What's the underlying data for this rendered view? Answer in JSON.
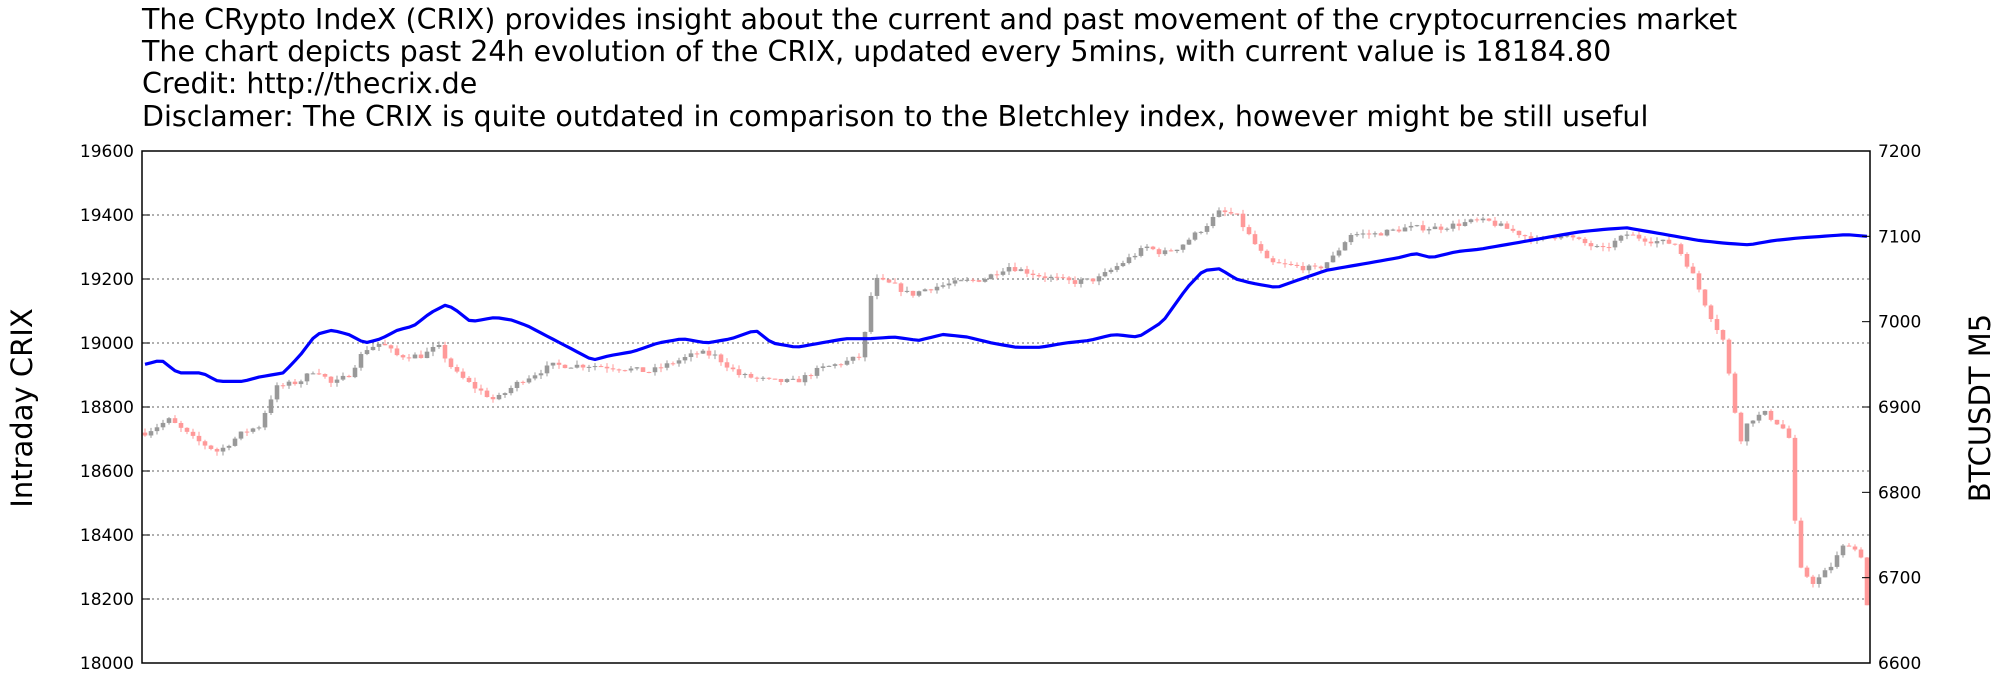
{
  "title_lines": [
    "The CRypto IndeX (CRIX) provides insight about the current and past movement of the cryptocurrencies market",
    "The chart depicts past 24h evolution of the CRIX, updated every 5mins, with current value is 18184.80",
    "Credit: http://thecrix.de",
    "Disclamer: The CRIX is quite outdated in comparison to the Bletchley index, however might be still useful"
  ],
  "chart_data": {
    "type": "candlestick+line",
    "ylabel_left": "Intraday CRIX",
    "ylabel_right": "BTCUSDT M5",
    "left_axis": {
      "range": [
        18000,
        19600
      ],
      "ticks": [
        18000,
        18200,
        18400,
        18600,
        18800,
        19000,
        19200,
        19400,
        19600
      ]
    },
    "right_axis": {
      "range": [
        6600,
        7200
      ],
      "ticks": [
        6600,
        6700,
        6800,
        6900,
        7000,
        7100,
        7200
      ]
    },
    "grid": "horizontal dotted",
    "candle_count": 288,
    "colors": {
      "up": "#999999",
      "down": "#ff9999",
      "line": "#0000ff",
      "grid": "#808080"
    },
    "crix_close_anchors": [
      [
        0,
        18720
      ],
      [
        6,
        18760
      ],
      [
        12,
        18700
      ],
      [
        18,
        18660
      ],
      [
        24,
        18720
      ],
      [
        28,
        18740
      ],
      [
        32,
        18860
      ],
      [
        38,
        18880
      ],
      [
        42,
        18920
      ],
      [
        46,
        18870
      ],
      [
        50,
        18900
      ],
      [
        54,
        18980
      ],
      [
        58,
        19000
      ],
      [
        62,
        18960
      ],
      [
        68,
        18960
      ],
      [
        72,
        18990
      ],
      [
        76,
        18910
      ],
      [
        80,
        18870
      ],
      [
        86,
        18820
      ],
      [
        92,
        18880
      ],
      [
        100,
        18930
      ],
      [
        110,
        18930
      ],
      [
        118,
        18920
      ],
      [
        124,
        18910
      ],
      [
        130,
        18940
      ],
      [
        136,
        18970
      ],
      [
        140,
        18960
      ],
      [
        146,
        18900
      ],
      [
        154,
        18880
      ],
      [
        160,
        18880
      ],
      [
        166,
        18920
      ],
      [
        172,
        18940
      ],
      [
        176,
        18960
      ],
      [
        179,
        19200
      ],
      [
        184,
        19180
      ],
      [
        188,
        19150
      ],
      [
        192,
        19170
      ],
      [
        200,
        19190
      ],
      [
        206,
        19200
      ],
      [
        212,
        19240
      ],
      [
        220,
        19210
      ],
      [
        228,
        19190
      ],
      [
        234,
        19200
      ],
      [
        240,
        19250
      ],
      [
        246,
        19300
      ],
      [
        250,
        19280
      ],
      [
        254,
        19300
      ],
      [
        260,
        19360
      ],
      [
        264,
        19410
      ],
      [
        268,
        19400
      ],
      [
        272,
        19320
      ],
      [
        276,
        19250
      ],
      [
        282,
        19240
      ],
      [
        288,
        19230
      ],
      [
        292,
        19270
      ],
      [
        296,
        19340
      ],
      [
        302,
        19340
      ],
      [
        310,
        19360
      ],
      [
        318,
        19360
      ],
      [
        326,
        19380
      ],
      [
        330,
        19380
      ],
      [
        336,
        19350
      ],
      [
        342,
        19320
      ],
      [
        348,
        19340
      ],
      [
        354,
        19310
      ],
      [
        358,
        19290
      ],
      [
        364,
        19340
      ],
      [
        370,
        19320
      ],
      [
        376,
        19310
      ],
      [
        380,
        19220
      ],
      [
        384,
        19100
      ],
      [
        388,
        19000
      ],
      [
        390,
        18820
      ],
      [
        392,
        18700
      ],
      [
        394,
        18760
      ],
      [
        398,
        18780
      ],
      [
        402,
        18740
      ],
      [
        404,
        18700
      ],
      [
        406,
        18300
      ],
      [
        410,
        18250
      ],
      [
        414,
        18300
      ],
      [
        418,
        18380
      ],
      [
        422,
        18330
      ],
      [
        423,
        18180
      ]
    ],
    "btc_line_anchors": [
      [
        0,
        6950
      ],
      [
        4,
        6955
      ],
      [
        8,
        6940
      ],
      [
        14,
        6940
      ],
      [
        18,
        6930
      ],
      [
        24,
        6930
      ],
      [
        28,
        6935
      ],
      [
        34,
        6940
      ],
      [
        38,
        6960
      ],
      [
        42,
        6985
      ],
      [
        46,
        6990
      ],
      [
        50,
        6985
      ],
      [
        54,
        6975
      ],
      [
        58,
        6980
      ],
      [
        62,
        6990
      ],
      [
        66,
        6995
      ],
      [
        70,
        7010
      ],
      [
        74,
        7020
      ],
      [
        76,
        7015
      ],
      [
        80,
        7000
      ],
      [
        86,
        7005
      ],
      [
        90,
        7002
      ],
      [
        94,
        6995
      ],
      [
        100,
        6980
      ],
      [
        106,
        6965
      ],
      [
        110,
        6955
      ],
      [
        114,
        6960
      ],
      [
        120,
        6965
      ],
      [
        126,
        6975
      ],
      [
        132,
        6980
      ],
      [
        138,
        6975
      ],
      [
        144,
        6980
      ],
      [
        150,
        6990
      ],
      [
        154,
        6975
      ],
      [
        160,
        6970
      ],
      [
        166,
        6975
      ],
      [
        172,
        6980
      ],
      [
        178,
        6980
      ],
      [
        184,
        6982
      ],
      [
        190,
        6978
      ],
      [
        196,
        6985
      ],
      [
        202,
        6982
      ],
      [
        208,
        6975
      ],
      [
        214,
        6970
      ],
      [
        220,
        6970
      ],
      [
        226,
        6975
      ],
      [
        232,
        6978
      ],
      [
        238,
        6985
      ],
      [
        244,
        6982
      ],
      [
        250,
        7000
      ],
      [
        256,
        7040
      ],
      [
        260,
        7060
      ],
      [
        264,
        7062
      ],
      [
        268,
        7050
      ],
      [
        272,
        7045
      ],
      [
        278,
        7040
      ],
      [
        284,
        7050
      ],
      [
        290,
        7060
      ],
      [
        296,
        7065
      ],
      [
        302,
        7070
      ],
      [
        308,
        7075
      ],
      [
        312,
        7080
      ],
      [
        316,
        7075
      ],
      [
        322,
        7082
      ],
      [
        328,
        7085
      ],
      [
        334,
        7090
      ],
      [
        340,
        7095
      ],
      [
        346,
        7100
      ],
      [
        352,
        7105
      ],
      [
        358,
        7108
      ],
      [
        364,
        7110
      ],
      [
        370,
        7105
      ],
      [
        376,
        7100
      ],
      [
        382,
        7095
      ],
      [
        388,
        7092
      ],
      [
        394,
        7090
      ],
      [
        400,
        7095
      ],
      [
        406,
        7098
      ],
      [
        412,
        7100
      ],
      [
        418,
        7102
      ],
      [
        423,
        7100
      ]
    ]
  }
}
